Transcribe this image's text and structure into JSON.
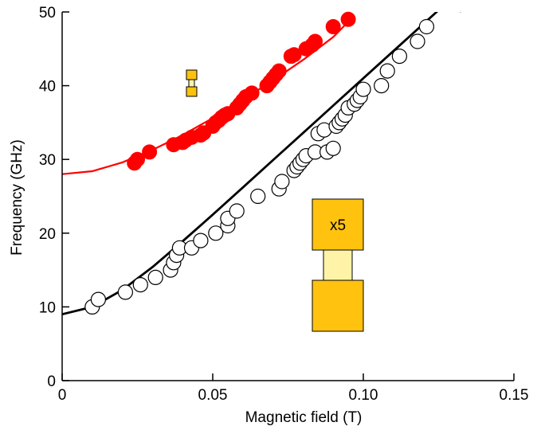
{
  "chart_data": {
    "type": "scatter",
    "xlabel": "Magnetic field (T)",
    "ylabel": "Frequency (GHz)",
    "xlim": [
      0,
      0.15
    ],
    "ylim": [
      0,
      50
    ],
    "xticks": [
      0,
      0.05,
      0.1,
      0.15
    ],
    "xtick_labels": [
      "0",
      "0.05",
      "0.10",
      "0.15"
    ],
    "yticks": [
      0,
      10,
      20,
      30,
      40,
      50
    ],
    "ytick_labels": [
      "0",
      "10",
      "20",
      "30",
      "40",
      "50"
    ],
    "grid": false,
    "inset_large_label": "x5",
    "colors": {
      "red_series": "#ff0000",
      "white_series_fill": "#ffffff",
      "white_series_stroke": "#000000",
      "red_fit": "#ff0000",
      "black_fit": "#000000",
      "inset_gold": "#ffc20e",
      "inset_pale": "#fff3a8"
    },
    "series": [
      {
        "marker": "filled-red-circle",
        "x": [
          0.024,
          0.025,
          0.029,
          0.037,
          0.04,
          0.041,
          0.043,
          0.046,
          0.047,
          0.05,
          0.051,
          0.052,
          0.053,
          0.054,
          0.055,
          0.058,
          0.059,
          0.06,
          0.061,
          0.063,
          0.068,
          0.069,
          0.07,
          0.071,
          0.072,
          0.076,
          0.077,
          0.081,
          0.083,
          0.084,
          0.09,
          0.095
        ],
        "y": [
          29.5,
          30.0,
          31.0,
          32.0,
          32.3,
          32.6,
          33.0,
          33.3,
          33.6,
          34.5,
          35.0,
          35.3,
          35.7,
          36.0,
          36.2,
          37.0,
          37.5,
          38.0,
          38.5,
          39.0,
          40.0,
          40.5,
          41.0,
          41.5,
          42.0,
          44.0,
          44.2,
          45.0,
          45.5,
          46.0,
          48.0,
          49.0
        ]
      },
      {
        "marker": "open-circle",
        "x": [
          0.01,
          0.012,
          0.021,
          0.026,
          0.031,
          0.036,
          0.037,
          0.038,
          0.039,
          0.043,
          0.046,
          0.051,
          0.055,
          0.055,
          0.058,
          0.065,
          0.072,
          0.073,
          0.077,
          0.078,
          0.079,
          0.08,
          0.081,
          0.084,
          0.085,
          0.087,
          0.088,
          0.09,
          0.091,
          0.092,
          0.093,
          0.094,
          0.095,
          0.097,
          0.098,
          0.099,
          0.1,
          0.106,
          0.108,
          0.112,
          0.118,
          0.121
        ],
        "y": [
          10.0,
          11.0,
          12.0,
          13.0,
          14.0,
          15.0,
          16.0,
          17.0,
          18.0,
          18.0,
          19.0,
          20.0,
          21.0,
          22.0,
          23.0,
          25.0,
          26.0,
          27.0,
          28.5,
          29.0,
          29.5,
          30.0,
          30.5,
          31.0,
          33.5,
          34.0,
          31.0,
          31.5,
          34.5,
          35.0,
          35.5,
          36.0,
          37.0,
          37.5,
          38.0,
          38.5,
          39.5,
          40.0,
          42.0,
          44.0,
          46.0,
          48.0
        ]
      }
    ],
    "fit_lines": [
      {
        "color": "red",
        "x": [
          0.0,
          0.01,
          0.02,
          0.03,
          0.04,
          0.05,
          0.06,
          0.07,
          0.08,
          0.09,
          0.097
        ],
        "y": [
          28.0,
          28.4,
          29.6,
          31.3,
          33.3,
          35.6,
          38.1,
          40.7,
          43.5,
          46.6,
          49.5
        ]
      },
      {
        "color": "black",
        "x": [
          0.0,
          0.01,
          0.02,
          0.03,
          0.04,
          0.05,
          0.06,
          0.07,
          0.08,
          0.09,
          0.1,
          0.11,
          0.12,
          0.13,
          0.1325
        ],
        "y": [
          9.0,
          10.0,
          12.3,
          15.4,
          18.9,
          22.5,
          26.2,
          29.9,
          33.6,
          37.3,
          41.0,
          44.7,
          48.4,
          52.1,
          50.0
        ]
      }
    ]
  }
}
